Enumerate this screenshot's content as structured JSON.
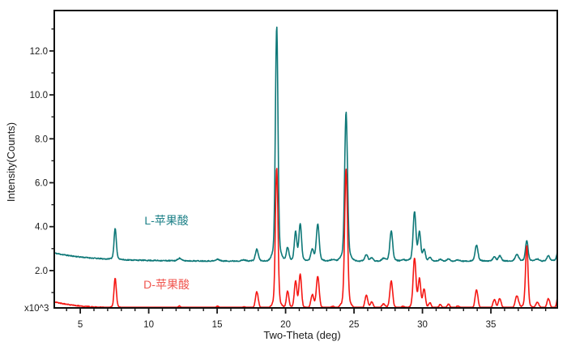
{
  "chart_data": {
    "type": "line",
    "title": "",
    "xlabel": "Two-Theta (deg)",
    "ylabel": "Intensity(Counts)",
    "y_multiplier_label": "x10^3",
    "xlim": [
      3.1,
      39.85
    ],
    "ylim": [
      0.3,
      13.84
    ],
    "grid": false,
    "frame": true,
    "legend_position": "inline-annotations",
    "x_major_ticks": [
      5,
      10,
      15,
      20,
      25,
      30,
      35
    ],
    "x_minor_step": 1,
    "y_major_ticks": [
      {
        "v": 2,
        "label": "2.0"
      },
      {
        "v": 4,
        "label": "4.0"
      },
      {
        "v": 6,
        "label": "6.0"
      },
      {
        "v": 8,
        "label": "8.0"
      },
      {
        "v": 10,
        "label": "10.0"
      },
      {
        "v": 12,
        "label": "12.0"
      }
    ],
    "y_minor_ticks": [
      1,
      3,
      5,
      7,
      9,
      11,
      13
    ],
    "annotations": [
      {
        "text": "L-苹果酸",
        "x": 11.3,
        "y": 4.28,
        "color": "#1e8188"
      },
      {
        "text": "D-苹果酸",
        "x": 11.3,
        "y": 1.37,
        "color": "#f0564f"
      }
    ],
    "series": [
      {
        "name": "L-苹果酸",
        "color": "#0e7878",
        "baseline": {
          "level": 2.43,
          "amp": 0.37,
          "decay": 0.35
        },
        "noise": 0.045,
        "peaks": [
          [
            7.55,
            1.4,
            0.08
          ],
          [
            12.25,
            0.12,
            0.12
          ],
          [
            15.05,
            0.08,
            0.12
          ],
          [
            16.95,
            0.05,
            0.15
          ],
          [
            17.9,
            0.54,
            0.1
          ],
          [
            19.35,
            10.7,
            0.09
          ],
          [
            20.15,
            0.63,
            0.09
          ],
          [
            20.73,
            1.3,
            0.09
          ],
          [
            21.07,
            1.66,
            0.09
          ],
          [
            21.95,
            0.52,
            0.1
          ],
          [
            22.35,
            1.66,
            0.1
          ],
          [
            23.45,
            0.08,
            0.15
          ],
          [
            24.42,
            6.8,
            0.1
          ],
          [
            25.9,
            0.3,
            0.1
          ],
          [
            26.3,
            0.15,
            0.1
          ],
          [
            27.15,
            0.12,
            0.12
          ],
          [
            27.72,
            1.38,
            0.1
          ],
          [
            28.6,
            0.06,
            0.15
          ],
          [
            29.42,
            2.22,
            0.1
          ],
          [
            29.78,
            1.26,
            0.09
          ],
          [
            30.12,
            0.5,
            0.09
          ],
          [
            30.55,
            0.15,
            0.1
          ],
          [
            31.3,
            0.08,
            0.1
          ],
          [
            31.9,
            0.1,
            0.1
          ],
          [
            32.6,
            0.05,
            0.12
          ],
          [
            33.95,
            0.72,
            0.1
          ],
          [
            35.25,
            0.2,
            0.1
          ],
          [
            35.65,
            0.25,
            0.1
          ],
          [
            36.9,
            0.3,
            0.12
          ],
          [
            37.62,
            0.95,
            0.09
          ],
          [
            38.4,
            0.1,
            0.12
          ],
          [
            39.2,
            0.25,
            0.1
          ],
          [
            39.95,
            0.7,
            0.1
          ]
        ]
      },
      {
        "name": "D-苹果酸",
        "color": "#f51713",
        "baseline": {
          "level": 0.27,
          "amp": 0.31,
          "decay": 0.5
        },
        "noise": 0.04,
        "peaks": [
          [
            7.55,
            1.35,
            0.08
          ],
          [
            12.25,
            0.12,
            0.12
          ],
          [
            15.05,
            0.1,
            0.12
          ],
          [
            16.95,
            0.08,
            0.15
          ],
          [
            17.9,
            0.76,
            0.1
          ],
          [
            19.35,
            6.42,
            0.09
          ],
          [
            20.15,
            0.78,
            0.09
          ],
          [
            20.73,
            1.22,
            0.09
          ],
          [
            21.07,
            1.52,
            0.09
          ],
          [
            21.95,
            0.6,
            0.1
          ],
          [
            22.35,
            1.44,
            0.1
          ],
          [
            23.45,
            0.1,
            0.15
          ],
          [
            24.42,
            6.38,
            0.1
          ],
          [
            25.9,
            0.6,
            0.1
          ],
          [
            26.3,
            0.3,
            0.1
          ],
          [
            27.15,
            0.2,
            0.12
          ],
          [
            27.72,
            1.26,
            0.1
          ],
          [
            28.6,
            0.1,
            0.15
          ],
          [
            29.42,
            2.28,
            0.1
          ],
          [
            29.78,
            1.28,
            0.09
          ],
          [
            30.12,
            0.85,
            0.09
          ],
          [
            30.55,
            0.25,
            0.1
          ],
          [
            31.3,
            0.18,
            0.1
          ],
          [
            31.9,
            0.2,
            0.1
          ],
          [
            32.6,
            0.12,
            0.12
          ],
          [
            33.95,
            0.85,
            0.1
          ],
          [
            35.25,
            0.4,
            0.1
          ],
          [
            35.65,
            0.45,
            0.1
          ],
          [
            36.9,
            0.58,
            0.12
          ],
          [
            37.62,
            2.88,
            0.09
          ],
          [
            38.4,
            0.28,
            0.12
          ],
          [
            39.2,
            0.45,
            0.1
          ],
          [
            39.95,
            0.78,
            0.1
          ]
        ]
      }
    ]
  }
}
